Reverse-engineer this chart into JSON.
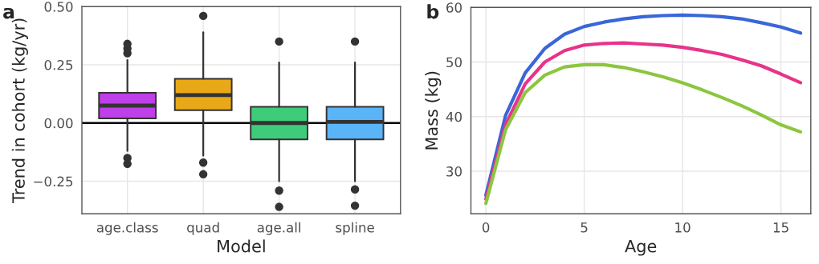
{
  "chart_data": [
    {
      "type": "box",
      "annotations": [
        "a"
      ],
      "xlabel": "Model",
      "ylabel": "Trend in cohort (kg/yr)",
      "categories": [
        "age.class",
        "quad",
        "age.all",
        "spline"
      ],
      "colors": [
        "#bf3fe8",
        "#e8a817",
        "#3fcc7a",
        "#5ab4f8"
      ],
      "boxes": [
        {
          "low": -0.12,
          "q1": 0.02,
          "median": 0.075,
          "q3": 0.13,
          "high": 0.27,
          "outliers": [
            0.34,
            0.32,
            0.3,
            -0.15,
            -0.175
          ]
        },
        {
          "low": -0.14,
          "q1": 0.055,
          "median": 0.12,
          "q3": 0.19,
          "high": 0.39,
          "outliers": [
            0.46,
            -0.17,
            -0.22
          ]
        },
        {
          "low": -0.25,
          "q1": -0.07,
          "median": 0.0,
          "q3": 0.07,
          "high": 0.26,
          "outliers": [
            0.35,
            -0.29,
            -0.36
          ]
        },
        {
          "low": -0.25,
          "q1": -0.07,
          "median": 0.005,
          "q3": 0.07,
          "high": 0.26,
          "outliers": [
            0.35,
            -0.285,
            -0.355
          ]
        }
      ],
      "ylim": [
        -0.39,
        0.5
      ],
      "yticks": [
        {
          "value": -0.25,
          "label": "−0.25"
        },
        {
          "value": 0,
          "label": "0.00"
        },
        {
          "value": 0.25,
          "label": "0.25"
        },
        {
          "value": 0.5,
          "label": "0.50"
        }
      ],
      "ref_lines": [
        {
          "axis": "y",
          "value": 0,
          "color": "#000000"
        }
      ],
      "grid": true
    },
    {
      "type": "line",
      "annotations": [
        "b"
      ],
      "xlabel": "Age",
      "ylabel": "Mass (kg)",
      "x": [
        0,
        1,
        2,
        3,
        4,
        5,
        6,
        7,
        8,
        9,
        10,
        11,
        12,
        13,
        14,
        15,
        16
      ],
      "series": [
        {
          "color": "#3a66d9",
          "values": [
            25.6,
            40.2,
            48.0,
            52.5,
            55.1,
            56.5,
            57.3,
            57.9,
            58.3,
            58.5,
            58.6,
            58.5,
            58.3,
            57.9,
            57.2,
            56.4,
            55.3
          ]
        },
        {
          "color": "#e8338a",
          "values": [
            24.9,
            38.5,
            46.0,
            50.0,
            52.1,
            53.1,
            53.4,
            53.5,
            53.3,
            53.1,
            52.7,
            52.1,
            51.4,
            50.4,
            49.3,
            47.8,
            46.2
          ]
        },
        {
          "color": "#8cc63f",
          "values": [
            24.1,
            37.6,
            44.4,
            47.6,
            49.1,
            49.5,
            49.5,
            49.0,
            48.2,
            47.3,
            46.2,
            44.9,
            43.5,
            42.0,
            40.3,
            38.5,
            37.2
          ]
        }
      ],
      "xlim": [
        -0.76,
        16.52
      ],
      "xticks": [
        0,
        5,
        10,
        15
      ],
      "ylim": [
        22.2,
        60
      ],
      "yticks": [
        30,
        40,
        50,
        60
      ],
      "grid": true,
      "legend": false
    }
  ]
}
